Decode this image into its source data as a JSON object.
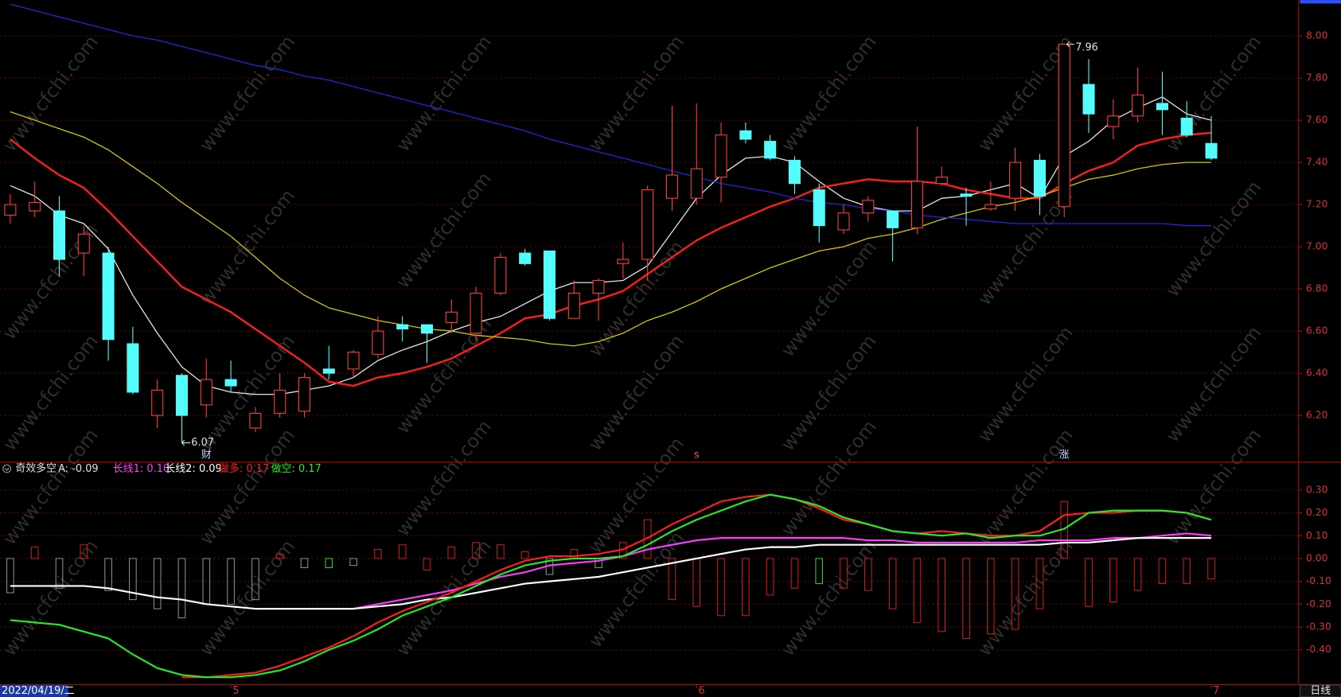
{
  "chart_data": [
    {
      "type": "candlestick",
      "categories": [
        "2022/04/19/二",
        null,
        null,
        null,
        null,
        null,
        null,
        null,
        null,
        "5",
        null,
        null,
        null,
        null,
        null,
        null,
        null,
        null,
        null,
        null,
        null,
        null,
        null,
        null,
        null,
        null,
        null,
        null,
        "6",
        null,
        null,
        null,
        null,
        null,
        null,
        null,
        null,
        null,
        null,
        null,
        null,
        null,
        null,
        null,
        null,
        null,
        null,
        null,
        null,
        "7"
      ],
      "open": [
        7.15,
        7.17,
        7.17,
        6.97,
        6.97,
        6.54,
        6.2,
        6.39,
        6.25,
        6.37,
        6.14,
        6.21,
        6.22,
        6.42,
        6.42,
        6.49,
        6.63,
        6.63,
        6.64,
        6.59,
        6.78,
        6.97,
        6.98,
        6.66,
        6.78,
        6.92,
        6.94,
        7.23,
        7.23,
        7.33,
        7.55,
        7.5,
        7.41,
        7.27,
        7.08,
        7.16,
        7.17,
        7.09,
        7.3,
        7.25,
        7.18,
        7.23,
        7.41,
        7.19,
        7.77,
        7.57,
        7.62,
        7.68,
        7.61,
        7.49
      ],
      "high": [
        7.25,
        7.31,
        7.24,
        7.1,
        7.0,
        6.62,
        6.37,
        6.4,
        6.47,
        6.46,
        6.24,
        6.4,
        6.4,
        6.53,
        6.51,
        6.67,
        6.67,
        6.63,
        6.75,
        6.81,
        6.97,
        6.99,
        6.98,
        6.84,
        6.85,
        7.02,
        7.29,
        7.67,
        7.68,
        7.59,
        7.59,
        7.53,
        7.43,
        7.3,
        7.2,
        7.24,
        7.17,
        7.57,
        7.38,
        7.28,
        7.31,
        7.47,
        7.44,
        7.96,
        7.89,
        7.7,
        7.85,
        7.83,
        7.69,
        7.62
      ],
      "low": [
        7.11,
        7.14,
        6.86,
        6.86,
        6.46,
        6.3,
        6.14,
        6.07,
        6.19,
        6.31,
        6.12,
        6.19,
        6.19,
        6.37,
        6.38,
        6.47,
        6.55,
        6.45,
        6.59,
        6.55,
        6.77,
        6.91,
        6.65,
        6.66,
        6.65,
        6.85,
        6.84,
        7.17,
        7.2,
        7.21,
        7.49,
        7.41,
        7.25,
        7.02,
        7.06,
        7.12,
        6.93,
        7.06,
        7.29,
        7.1,
        7.17,
        7.17,
        7.15,
        7.14,
        7.54,
        7.51,
        7.59,
        7.53,
        7.52,
        7.41
      ],
      "close": [
        7.2,
        7.21,
        6.94,
        7.06,
        6.56,
        6.31,
        6.32,
        6.2,
        6.37,
        6.34,
        6.21,
        6.32,
        6.38,
        6.4,
        6.5,
        6.6,
        6.61,
        6.59,
        6.69,
        6.78,
        6.95,
        6.92,
        6.66,
        6.78,
        6.84,
        6.94,
        7.27,
        7.34,
        7.37,
        7.53,
        7.51,
        7.42,
        7.3,
        7.1,
        7.16,
        7.22,
        7.09,
        7.31,
        7.33,
        7.24,
        7.2,
        7.4,
        7.24,
        7.96,
        7.63,
        7.62,
        7.72,
        7.65,
        7.53,
        7.42
      ],
      "up_color": "#ff3c3c",
      "down_color": "#54fcfc",
      "series": [
        {
          "color": "#e6e6e6",
          "values": [
            7.29,
            7.24,
            7.15,
            7.11,
            6.99,
            6.77,
            6.59,
            6.43,
            6.34,
            6.31,
            6.3,
            6.3,
            6.32,
            6.34,
            6.38,
            6.46,
            6.51,
            6.55,
            6.6,
            6.64,
            6.67,
            6.73,
            6.79,
            6.83,
            6.83,
            6.84,
            6.91,
            7.07,
            7.23,
            7.34,
            7.42,
            7.43,
            7.4,
            7.31,
            7.23,
            7.19,
            7.17,
            7.17,
            7.23,
            7.24,
            7.27,
            7.3,
            7.23,
            7.43,
            7.5,
            7.6,
            7.66,
            7.71,
            7.63,
            7.6
          ]
        },
        {
          "color": "#ff1e1e",
          "values": [
            7.51,
            7.42,
            7.34,
            7.28,
            7.17,
            7.05,
            6.93,
            6.81,
            6.75,
            6.69,
            6.61,
            6.53,
            6.45,
            6.36,
            6.34,
            6.38,
            6.4,
            6.43,
            6.47,
            6.53,
            6.59,
            6.66,
            6.68,
            6.72,
            6.75,
            6.79,
            6.87,
            6.95,
            7.03,
            7.09,
            7.14,
            7.19,
            7.23,
            7.28,
            7.3,
            7.32,
            7.31,
            7.31,
            7.3,
            7.27,
            7.25,
            7.23,
            7.23,
            7.3,
            7.36,
            7.4,
            7.48,
            7.51,
            7.53,
            7.54
          ]
        },
        {
          "color": "#d2c800",
          "values": [
            7.64,
            7.6,
            7.56,
            7.52,
            7.46,
            7.38,
            7.3,
            7.21,
            7.13,
            7.05,
            6.95,
            6.85,
            6.77,
            6.71,
            6.68,
            6.65,
            6.63,
            6.61,
            6.6,
            6.58,
            6.57,
            6.56,
            6.54,
            6.53,
            6.55,
            6.59,
            6.65,
            6.69,
            6.74,
            6.8,
            6.85,
            6.9,
            6.94,
            6.98,
            7.0,
            7.04,
            7.06,
            7.09,
            7.13,
            7.16,
            7.19,
            7.21,
            7.24,
            7.28,
            7.32,
            7.34,
            7.37,
            7.39,
            7.4,
            7.4
          ]
        },
        {
          "color": "#2424dc",
          "values": [
            8.15,
            8.12,
            8.09,
            8.06,
            8.03,
            8.0,
            7.98,
            7.95,
            7.92,
            7.89,
            7.86,
            7.84,
            7.81,
            7.79,
            7.76,
            7.73,
            7.7,
            7.67,
            7.64,
            7.61,
            7.58,
            7.55,
            7.51,
            7.48,
            7.45,
            7.42,
            7.39,
            7.36,
            7.33,
            7.3,
            7.28,
            7.26,
            7.23,
            7.21,
            7.2,
            7.18,
            7.17,
            7.15,
            7.14,
            7.13,
            7.12,
            7.11,
            7.11,
            7.11,
            7.11,
            7.11,
            7.11,
            7.11,
            7.1,
            7.1
          ]
        }
      ],
      "ylim": [
        5.98,
        8.17
      ],
      "yticks": [
        {
          "value": 6.2,
          "label": "6.20"
        },
        {
          "value": 6.4,
          "label": "6.40"
        },
        {
          "value": 6.6,
          "label": "6.60"
        },
        {
          "value": 6.8,
          "label": "6.80"
        },
        {
          "value": 7,
          "label": "7.00"
        },
        {
          "value": 7.2,
          "label": "7.20"
        },
        {
          "value": 7.4,
          "label": "7.40"
        },
        {
          "value": 7.6,
          "label": "7.60"
        },
        {
          "value": 7.8,
          "label": "7.80"
        },
        {
          "value": 8,
          "label": "8.00"
        }
      ],
      "grid": true,
      "max_label": 7.96,
      "min_label": 6.07,
      "event_labels": [
        null,
        null,
        null,
        null,
        null,
        null,
        null,
        null,
        "财",
        null,
        null,
        null,
        null,
        null,
        null,
        null,
        null,
        null,
        null,
        null,
        null,
        null,
        null,
        null,
        null,
        null,
        null,
        null,
        "s",
        null,
        null,
        null,
        null,
        null,
        null,
        null,
        null,
        null,
        null,
        null,
        null,
        null,
        null,
        "涨",
        null,
        null,
        null,
        null,
        null,
        null
      ],
      "period": "日线",
      "watermark": "www.cfchi.com"
    },
    {
      "type": "combo",
      "title": "奇效多空",
      "histogram": {
        "name": "A:",
        "value_label": "-0.09",
        "values": [
          -0.15,
          0.05,
          -0.13,
          0.06,
          -0.14,
          -0.18,
          -0.22,
          -0.26,
          -0.2,
          -0.2,
          -0.18,
          0.02,
          -0.04,
          -0.04,
          -0.03,
          0.04,
          0.06,
          -0.05,
          0.05,
          0.07,
          0.06,
          0.03,
          -0.07,
          0.04,
          -0.04,
          0.07,
          0.17,
          -0.18,
          -0.21,
          -0.25,
          -0.25,
          -0.16,
          -0.13,
          -0.11,
          -0.13,
          -0.14,
          -0.22,
          -0.28,
          -0.32,
          -0.35,
          -0.33,
          -0.31,
          -0.22,
          0.25,
          -0.21,
          -0.19,
          -0.14,
          -0.11,
          -0.11,
          -0.09
        ],
        "colors": [
          "#8a8a8a",
          "#c41a1a",
          "#8a8a8a",
          "#c41a1a",
          "#8a8a8a",
          "#8a8a8a",
          "#8a8a8a",
          "#8a8a8a",
          "#8a8a8a",
          "#8a8a8a",
          "#8a8a8a",
          "#c41a1a",
          "#8a8a8a",
          "#22d022",
          "#8a8a8a",
          "#c41a1a",
          "#c41a1a",
          "#c41a1a",
          "#c41a1a",
          "#c41a1a",
          "#c41a1a",
          "#c41a1a",
          "#8a8a8a",
          "#c41a1a",
          "#8a8a8a",
          "#c41a1a",
          "#c41a1a",
          "#c41a1a",
          "#c41a1a",
          "#c41a1a",
          "#c41a1a",
          "#c41a1a",
          "#c41a1a",
          "#22d022",
          "#c41a1a",
          "#c41a1a",
          "#c41a1a",
          "#c41a1a",
          "#c41a1a",
          "#c41a1a",
          "#c41a1a",
          "#c41a1a",
          "#c41a1a",
          "#c41a1a",
          "#c41a1a",
          "#c41a1a",
          "#c41a1a",
          "#c41a1a",
          "#c41a1a",
          "#c41a1a"
        ]
      },
      "series": [
        {
          "name": "长线1:",
          "value_label": "0.10",
          "color": "#ff3cff",
          "values": [
            null,
            null,
            null,
            null,
            null,
            null,
            null,
            null,
            null,
            null,
            null,
            null,
            null,
            null,
            -0.22,
            -0.2,
            -0.18,
            -0.16,
            -0.14,
            -0.11,
            -0.08,
            -0.06,
            -0.03,
            -0.02,
            -0.01,
            0.01,
            0.04,
            0.06,
            0.08,
            0.09,
            0.09,
            0.09,
            0.09,
            0.09,
            0.09,
            0.08,
            0.08,
            0.07,
            0.07,
            0.07,
            0.07,
            0.07,
            0.08,
            0.08,
            0.08,
            0.09,
            0.09,
            0.1,
            0.11,
            0.1
          ]
        },
        {
          "name": "长线2:",
          "value_label": "0.09",
          "color": "#ffffff",
          "values": [
            -0.12,
            -0.12,
            -0.12,
            -0.12,
            -0.13,
            -0.15,
            -0.17,
            -0.18,
            -0.2,
            -0.21,
            -0.22,
            -0.22,
            -0.22,
            -0.22,
            -0.22,
            -0.21,
            -0.2,
            -0.18,
            -0.17,
            -0.15,
            -0.13,
            -0.11,
            -0.1,
            -0.09,
            -0.08,
            -0.06,
            -0.04,
            -0.02,
            0.0,
            0.02,
            0.04,
            0.05,
            0.05,
            0.06,
            0.06,
            0.06,
            0.06,
            0.06,
            0.06,
            0.06,
            0.06,
            0.06,
            0.06,
            0.07,
            0.07,
            0.08,
            0.09,
            0.09,
            0.09,
            0.09
          ]
        },
        {
          "name": "做多:",
          "value_label": "0.17",
          "color": "#ff1e1e",
          "values": [
            null,
            null,
            null,
            null,
            null,
            null,
            null,
            -0.52,
            -0.52,
            -0.51,
            -0.5,
            -0.47,
            -0.43,
            -0.39,
            -0.34,
            -0.28,
            -0.23,
            -0.19,
            -0.15,
            -0.1,
            -0.05,
            -0.01,
            0.01,
            0.01,
            0.02,
            0.04,
            0.09,
            0.15,
            0.2,
            0.25,
            0.27,
            0.28,
            0.26,
            0.22,
            0.17,
            0.15,
            0.12,
            0.11,
            0.12,
            0.11,
            0.1,
            0.1,
            0.12,
            0.19,
            0.2,
            0.2,
            0.21,
            0.21,
            0.2,
            0.17
          ]
        },
        {
          "name": "做空:",
          "value_label": "0.17",
          "color": "#22ee22",
          "values": [
            -0.27,
            -0.28,
            -0.29,
            -0.32,
            -0.35,
            -0.42,
            -0.48,
            -0.51,
            -0.52,
            -0.52,
            -0.51,
            -0.49,
            -0.45,
            -0.4,
            -0.36,
            -0.31,
            -0.25,
            -0.21,
            -0.17,
            -0.12,
            -0.07,
            -0.03,
            -0.01,
            0.0,
            0.0,
            0.01,
            0.06,
            0.12,
            0.17,
            0.21,
            0.25,
            0.28,
            0.26,
            0.23,
            0.18,
            0.15,
            0.12,
            0.11,
            0.1,
            0.11,
            0.09,
            0.1,
            0.1,
            0.13,
            0.2,
            0.21,
            0.21,
            0.21,
            0.2,
            0.17
          ]
        }
      ],
      "ylim": [
        -0.55,
        0.42
      ],
      "yticks": [
        {
          "value": -0.4,
          "label": "-0.40"
        },
        {
          "value": -0.3,
          "label": "-0.30"
        },
        {
          "value": -0.2,
          "label": "-0.20"
        },
        {
          "value": -0.1,
          "label": "-0.10"
        },
        {
          "value": 0,
          "label": "0.00"
        },
        {
          "value": 0.1,
          "label": "0.10"
        },
        {
          "value": 0.2,
          "label": "0.20"
        },
        {
          "value": 0.3,
          "label": "0.30"
        }
      ],
      "grid": true
    }
  ]
}
